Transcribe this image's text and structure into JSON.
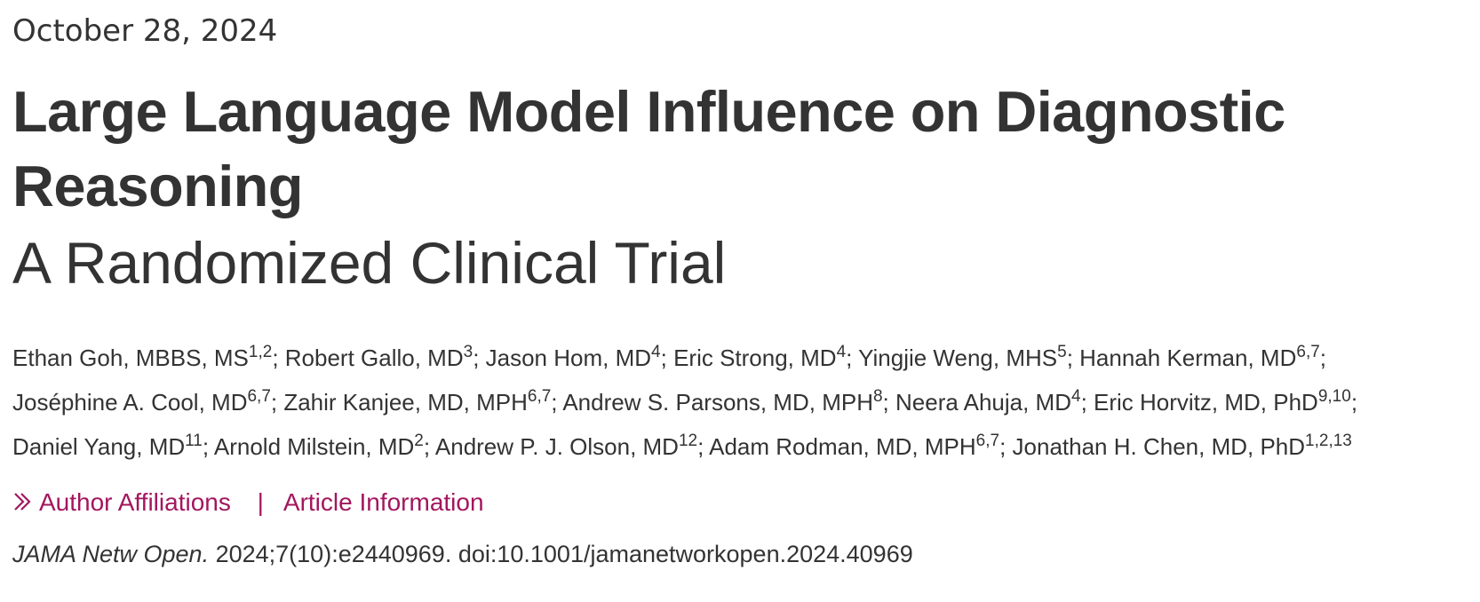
{
  "article": {
    "date": "October 28, 2024",
    "title": "Large Language Model Influence on Diagnostic Reasoning",
    "subtitle": "A Randomized Clinical Trial",
    "authors": [
      {
        "name": "Ethan Goh, MBBS, MS",
        "sup": "1,2"
      },
      {
        "name": "Robert Gallo, MD",
        "sup": "3"
      },
      {
        "name": "Jason Hom, MD",
        "sup": "4"
      },
      {
        "name": "Eric Strong, MD",
        "sup": "4"
      },
      {
        "name": "Yingjie Weng, MHS",
        "sup": "5"
      },
      {
        "name": "Hannah Kerman, MD",
        "sup": "6,7"
      },
      {
        "name": "Joséphine A. Cool, MD",
        "sup": "6,7"
      },
      {
        "name": "Zahir Kanjee, MD, MPH",
        "sup": "6,7"
      },
      {
        "name": "Andrew S. Parsons, MD, MPH",
        "sup": "8"
      },
      {
        "name": "Neera Ahuja, MD",
        "sup": "4"
      },
      {
        "name": "Eric Horvitz, MD, PhD",
        "sup": "9,10"
      },
      {
        "name": "Daniel Yang, MD",
        "sup": "11"
      },
      {
        "name": "Arnold Milstein, MD",
        "sup": "2"
      },
      {
        "name": "Andrew P. J. Olson, MD",
        "sup": "12"
      },
      {
        "name": "Adam Rodman, MD, MPH",
        "sup": "6,7"
      },
      {
        "name": "Jonathan H. Chen, MD, PhD",
        "sup": "1,2,13"
      }
    ],
    "links": {
      "affiliations_label": "Author Affiliations",
      "separator": "|",
      "info_label": "Article Information"
    },
    "citation": {
      "journal": "JAMA Netw Open.",
      "details": "2024;7(10):e2440969. doi:10.1001/jamanetworkopen.2024.40969"
    },
    "icons": {
      "expand": "double-chevron-right-icon"
    },
    "colors": {
      "text": "#333333",
      "link": "#a3165e"
    }
  }
}
